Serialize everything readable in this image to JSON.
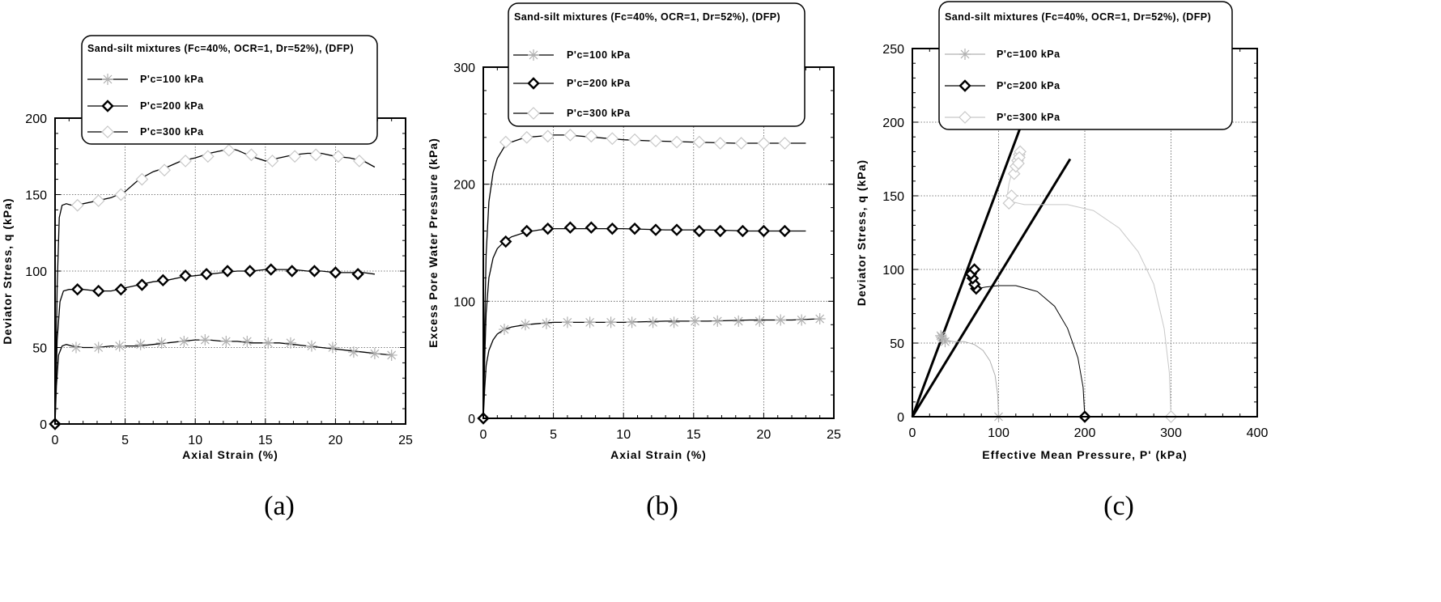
{
  "chart_data": [
    {
      "id": "a",
      "type": "line",
      "caption": "(a)",
      "xlabel": "Axial Strain (%)",
      "ylabel": "Deviator Stress, q (kPa)",
      "xlim": [
        0,
        25
      ],
      "ylim": [
        0,
        200
      ],
      "xticks": [
        0,
        5,
        10,
        15,
        20,
        25
      ],
      "yticks": [
        0,
        50,
        100,
        150,
        200
      ],
      "grid": true,
      "legend": {
        "title": "Sand-silt mixtures (Fc=40%, OCR=1, Dr=52%), (DFP)",
        "entries": [
          "P'c=100 kPa",
          "P'c=200 kPa",
          "P'c=300 kPa"
        ]
      },
      "series": [
        {
          "name": "P'c=100 kPa",
          "marker": "star",
          "color": "#b0b0b0",
          "x": [
            0,
            0.1,
            0.25,
            0.5,
            0.8,
            1.2,
            2,
            3,
            4,
            5,
            6,
            7,
            8,
            9,
            10,
            11,
            12,
            13,
            14,
            15,
            16,
            17,
            18,
            19,
            20,
            21,
            22,
            23,
            24
          ],
          "y": [
            0,
            25,
            45,
            51,
            52,
            51,
            50,
            50,
            51,
            51,
            51,
            52,
            53,
            54,
            55,
            55,
            54,
            54,
            53,
            53,
            53,
            52,
            51,
            50,
            49,
            48,
            47,
            46,
            45
          ],
          "marker_x": [
            1.5,
            3.1,
            4.6,
            6.1,
            7.6,
            9.2,
            10.7,
            12.2,
            13.7,
            15.2,
            16.8,
            18.3,
            19.8,
            21.3,
            22.8,
            24.0
          ],
          "marker_y": [
            50,
            50,
            51,
            52,
            53,
            54,
            55,
            54,
            54,
            53,
            53,
            51,
            50,
            47,
            46,
            45
          ]
        },
        {
          "name": "P'c=200 kPa",
          "marker": "diamond",
          "color": "#000000",
          "x": [
            0,
            0.15,
            0.35,
            0.6,
            1,
            1.5,
            2,
            3,
            4,
            5,
            6,
            7,
            8,
            9,
            10,
            11,
            12,
            13,
            14,
            15,
            16,
            17,
            18,
            19,
            20,
            21,
            22,
            22.8
          ],
          "y": [
            0,
            55,
            80,
            87,
            88,
            88,
            88,
            87,
            87,
            89,
            91,
            93,
            94,
            96,
            97,
            98,
            99,
            100,
            100,
            101,
            101,
            101,
            100,
            100,
            99,
            99,
            99,
            98
          ],
          "marker_x": [
            0,
            1.6,
            3.1,
            4.7,
            6.2,
            7.7,
            9.3,
            10.8,
            12.3,
            13.9,
            15.4,
            16.9,
            18.5,
            20.0,
            21.6
          ],
          "marker_y": [
            0,
            88,
            87,
            88,
            91,
            94,
            97,
            98,
            100,
            100,
            101,
            100,
            100,
            99,
            98
          ]
        },
        {
          "name": "P'c=300 kPa",
          "marker": "open-diamond",
          "color": "#c8c8c8",
          "x": [
            0,
            0.15,
            0.3,
            0.5,
            0.8,
            1.2,
            2,
            3,
            4,
            5,
            6,
            7,
            8,
            9,
            10,
            11,
            12,
            12.5,
            13,
            14,
            15,
            16,
            17,
            18,
            19,
            20,
            21,
            22,
            22.8
          ],
          "y": [
            0,
            90,
            135,
            143,
            144,
            143,
            144,
            146,
            148,
            152,
            160,
            165,
            168,
            172,
            174,
            177,
            179,
            180,
            179,
            175,
            172,
            174,
            176,
            177,
            177,
            175,
            174,
            172,
            168
          ],
          "marker_x": [
            1.6,
            3.1,
            4.7,
            6.2,
            7.8,
            9.3,
            10.9,
            12.4,
            14.0,
            15.5,
            17.1,
            18.6,
            20.2,
            21.7
          ],
          "marker_y": [
            143,
            146,
            150,
            160,
            166,
            172,
            175,
            179,
            176,
            172,
            175,
            176,
            175,
            172
          ]
        }
      ]
    },
    {
      "id": "b",
      "type": "line",
      "caption": "(b)",
      "xlabel": "Axial Strain (%)",
      "ylabel": "Excess Pore Water Pressure (kPa)",
      "xlim": [
        0,
        25
      ],
      "ylim": [
        0,
        300
      ],
      "xticks": [
        0,
        5,
        10,
        15,
        20,
        25
      ],
      "yticks": [
        0,
        100,
        200,
        300
      ],
      "grid": true,
      "legend": {
        "title": "Sand-silt mixtures (Fc=40%, OCR=1, Dr=52%), (DFP)",
        "entries": [
          "P'c=100 kPa",
          "P'c=200 kPa",
          "P'c=300 kPa"
        ]
      },
      "series": [
        {
          "name": "P'c=100 kPa",
          "marker": "star",
          "color": "#b0b0b0",
          "x": [
            0,
            0.1,
            0.2,
            0.4,
            0.7,
            1,
            1.5,
            2,
            3,
            4,
            5,
            7,
            10,
            13,
            16,
            19,
            22,
            24
          ],
          "y": [
            0,
            25,
            45,
            58,
            67,
            72,
            76,
            78,
            80,
            81,
            82,
            82,
            82,
            83,
            83,
            84,
            84,
            85
          ],
          "marker_x": [
            1.5,
            3.0,
            4.5,
            6.0,
            7.6,
            9.1,
            10.6,
            12.1,
            13.6,
            15.1,
            16.7,
            18.2,
            19.7,
            21.2,
            22.7,
            24.0
          ],
          "marker_y": [
            76,
            80,
            81,
            82,
            82,
            82,
            82,
            82,
            82,
            83,
            83,
            83,
            83,
            84,
            84,
            85
          ]
        },
        {
          "name": "P'c=200 kPa",
          "marker": "diamond",
          "color": "#000000",
          "x": [
            0,
            0.1,
            0.2,
            0.4,
            0.7,
            1,
            1.5,
            2,
            3,
            4,
            5,
            6,
            8,
            10,
            13,
            16,
            19,
            22,
            23
          ],
          "y": [
            0,
            50,
            90,
            120,
            137,
            145,
            151,
            155,
            159,
            161,
            162,
            162,
            162,
            162,
            161,
            161,
            160,
            160,
            160
          ],
          "marker_x": [
            0,
            1.6,
            3.1,
            4.6,
            6.2,
            7.7,
            9.2,
            10.8,
            12.3,
            13.8,
            15.4,
            16.9,
            18.5,
            20.0,
            21.5
          ],
          "marker_y": [
            0,
            151,
            160,
            162,
            163,
            163,
            162,
            162,
            161,
            161,
            160,
            160,
            160,
            160,
            160
          ]
        },
        {
          "name": "P'c=300 kPa",
          "marker": "open-diamond",
          "color": "#c8c8c8",
          "x": [
            0,
            0.1,
            0.2,
            0.4,
            0.7,
            1,
            1.5,
            2,
            3,
            4,
            5,
            6,
            8,
            10,
            12,
            15,
            18,
            20,
            23
          ],
          "y": [
            0,
            80,
            140,
            185,
            210,
            222,
            232,
            236,
            240,
            241,
            242,
            242,
            240,
            238,
            237,
            236,
            235,
            235,
            235
          ],
          "marker_x": [
            1.6,
            3.1,
            4.6,
            6.2,
            7.7,
            9.2,
            10.8,
            12.3,
            13.8,
            15.4,
            16.9,
            18.4,
            20.0,
            21.5
          ],
          "marker_y": [
            236,
            240,
            241,
            242,
            241,
            239,
            238,
            237,
            236,
            236,
            235,
            235,
            235,
            235
          ]
        }
      ]
    },
    {
      "id": "c",
      "type": "line",
      "caption": "(c)",
      "xlabel": "Effective Mean Pressure, P' (kPa)",
      "ylabel": "Deviator Stress, q (kPa)",
      "xlim": [
        0,
        400
      ],
      "ylim": [
        0,
        250
      ],
      "xticks": [
        0,
        100,
        200,
        300,
        400
      ],
      "yticks": [
        0,
        50,
        100,
        150,
        200,
        250
      ],
      "grid": true,
      "legend": {
        "title": "Sand-silt mixtures (Fc=40%, OCR=1, Dr=52%), (DFP)",
        "entries": [
          "P'c=100 kPa",
          "P'c=200 kPa",
          "P'c=300 kPa"
        ]
      },
      "reference_lines": [
        {
          "x": [
            0,
            125
          ],
          "y": [
            0,
            196
          ]
        },
        {
          "x": [
            0,
            183
          ],
          "y": [
            0,
            175
          ]
        }
      ],
      "series": [
        {
          "name": "P'c=100 kPa",
          "marker": "star",
          "color": "#b0b0b0",
          "x": [
            100,
            99,
            96,
            90,
            82,
            72,
            60,
            48,
            40,
            36,
            34
          ],
          "y": [
            0,
            15,
            28,
            38,
            45,
            49,
            51,
            51,
            52,
            53,
            54
          ],
          "marker_x": [
            100,
            38,
            35,
            34,
            33
          ],
          "marker_y": [
            0,
            51,
            53,
            54,
            55
          ]
        },
        {
          "name": "P'c=200 kPa",
          "marker": "diamond",
          "color": "#000000",
          "x": [
            200,
            198,
            192,
            180,
            165,
            145,
            120,
            100,
            85,
            75,
            70,
            68,
            70,
            73
          ],
          "y": [
            0,
            20,
            40,
            60,
            75,
            85,
            89,
            89,
            88,
            87,
            88,
            92,
            96,
            100
          ],
          "marker_x": [
            200,
            74,
            72,
            70,
            68,
            72
          ],
          "marker_y": [
            0,
            87,
            90,
            94,
            97,
            100
          ]
        },
        {
          "name": "P'c=300 kPa",
          "marker": "open-diamond",
          "color": "#c8c8c8",
          "x": [
            300,
            298,
            292,
            280,
            262,
            240,
            210,
            180,
            150,
            130,
            115,
            110,
            112,
            115,
            118,
            120,
            122,
            124
          ],
          "y": [
            0,
            30,
            60,
            90,
            112,
            128,
            140,
            144,
            144,
            144,
            146,
            150,
            158,
            165,
            170,
            174,
            177,
            180
          ],
          "marker_x": [
            300,
            118,
            120,
            122,
            124,
            125,
            124,
            123,
            115,
            112
          ],
          "marker_y": [
            0,
            165,
            170,
            174,
            178,
            180,
            176,
            172,
            150,
            145
          ]
        }
      ]
    }
  ]
}
